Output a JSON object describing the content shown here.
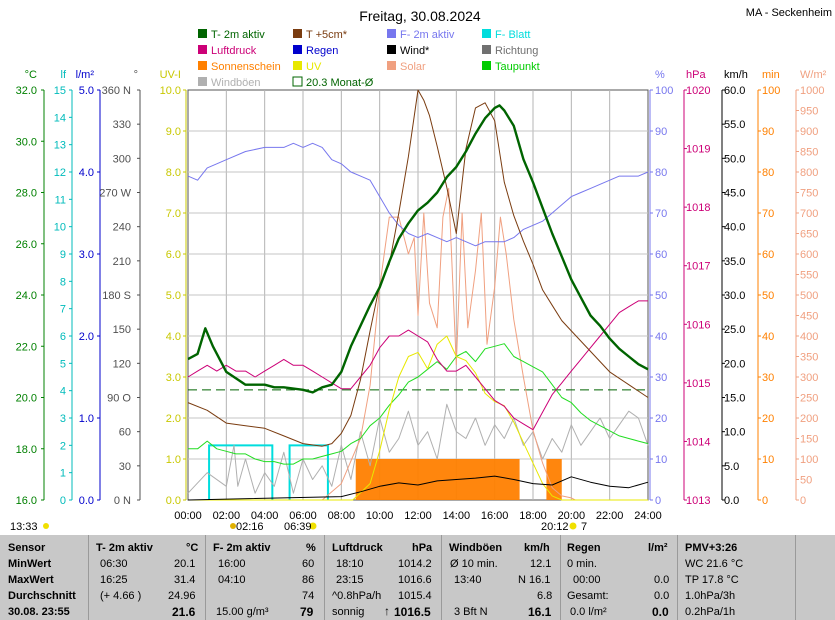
{
  "header": {
    "title": "Freitag, 30.08.2024",
    "station": "MA - Seckenheim"
  },
  "legend": [
    {
      "label": "T- 2m aktiv",
      "color": "#006400"
    },
    {
      "label": "T +5cm*",
      "color": "#7a3c10"
    },
    {
      "label": "F- 2m aktiv",
      "color": "#7777ee"
    },
    {
      "label": "F- Blatt",
      "color": "#00dddd"
    },
    {
      "label": "Luftdruck",
      "color": "#cc0077"
    },
    {
      "label": "Regen",
      "color": "#0000cc"
    },
    {
      "label": "Wind*",
      "color": "#000000"
    },
    {
      "label": "Richtung",
      "color": "#707070"
    },
    {
      "label": "Sonnenschein",
      "color": "#ff8000"
    },
    {
      "label": "UV",
      "color": "#e8e800"
    },
    {
      "label": "Solar",
      "color": "#f0a080"
    },
    {
      "label": "Taupunkt",
      "color": "#00cc00"
    },
    {
      "label": "Windböen",
      "color": "#b0b0b0"
    },
    {
      "label": "20.3 Monat-Ø",
      "color": "#006400"
    }
  ],
  "chart_data": {
    "type": "line",
    "x_label_unit": "time of day",
    "x_ticks": [
      "00:00",
      "02:00",
      "04:00",
      "06:00",
      "08:00",
      "10:00",
      "12:00",
      "14:00",
      "16:00",
      "18:00",
      "20:00",
      "22:00",
      "24:00"
    ],
    "xlim": [
      0,
      24
    ],
    "axes": {
      "temperature": {
        "unit": "°C",
        "ticks": [
          "32.0",
          "30.0",
          "28.0",
          "26.0",
          "24.0",
          "22.0",
          "20.0",
          "18.0",
          "16.0"
        ],
        "range": [
          16,
          32
        ],
        "color": "#008000"
      },
      "leaf_wetness": {
        "unit": "lf",
        "ticks": [
          "15",
          "14",
          "13",
          "12",
          "11",
          "10",
          "9",
          "8",
          "7",
          "6",
          "5",
          "4",
          "3",
          "2",
          "1",
          "0"
        ],
        "range": [
          0,
          15
        ],
        "color": "#00bbbb"
      },
      "rain": {
        "unit": "l/m²",
        "ticks": [
          "5.0",
          "4.0",
          "3.0",
          "2.0",
          "1.0",
          "0.0"
        ],
        "range": [
          0,
          5
        ],
        "color": "#0000cc"
      },
      "direction": {
        "unit": "°",
        "ticks": [
          "360 N",
          "330",
          "300",
          "270 W",
          "240",
          "210",
          "180 S",
          "150",
          "120",
          "90 O",
          "60",
          "30",
          "0 N"
        ],
        "range": [
          0,
          360
        ],
        "color": "#505050"
      },
      "uv": {
        "unit": "UV-I",
        "ticks": [
          "10.0",
          "9.0",
          "8.0",
          "7.0",
          "6.0",
          "5.0",
          "4.0",
          "3.0",
          "2.0",
          "1.0",
          "0.0"
        ],
        "range": [
          0,
          10
        ],
        "color": "#c8c800"
      },
      "humidity": {
        "unit": "%",
        "ticks": [
          "100",
          "90",
          "80",
          "70",
          "60",
          "50",
          "40",
          "30",
          "20",
          "10",
          "0"
        ],
        "range": [
          0,
          100
        ],
        "color": "#7777ee"
      },
      "pressure": {
        "unit": "hPa",
        "ticks": [
          "1020",
          "1019",
          "1018",
          "1017",
          "1016",
          "1015",
          "1014",
          "1013"
        ],
        "range": [
          1013,
          1020
        ],
        "color": "#cc0077"
      },
      "wind": {
        "unit": "km/h",
        "ticks": [
          "60.0",
          "55.0",
          "50.0",
          "45.0",
          "40.0",
          "35.0",
          "30.0",
          "25.0",
          "20.0",
          "15.0",
          "10.0",
          "5.0",
          "0.0"
        ],
        "range": [
          0,
          60
        ],
        "color": "#000000"
      },
      "sunshine": {
        "unit": "min",
        "ticks": [
          "100",
          "90",
          "80",
          "70",
          "60",
          "50",
          "40",
          "30",
          "20",
          "10",
          "0"
        ],
        "range": [
          0,
          100
        ],
        "color": "#ff8000"
      },
      "solar": {
        "unit": "W/m²",
        "ticks": [
          "1000",
          "950",
          "900",
          "850",
          "800",
          "750",
          "700",
          "650",
          "600",
          "550",
          "500",
          "450",
          "400",
          "350",
          "300",
          "250",
          "200",
          "150",
          "100",
          "50",
          "0"
        ],
        "range": [
          0,
          1000
        ],
        "color": "#f0a080"
      }
    },
    "series": [
      {
        "name": "T- 2m aktiv",
        "axis": "temperature",
        "color": "#006400",
        "width": 2.4,
        "x": [
          0,
          0.5,
          0.9,
          1.3,
          2,
          3,
          4,
          4.5,
          5,
          6,
          6.5,
          7,
          7.5,
          8,
          8.5,
          9,
          9.5,
          10,
          10.5,
          11,
          11.5,
          12,
          12.5,
          13,
          13.5,
          14,
          14.5,
          15,
          15.5,
          16,
          16.25,
          16.5,
          17,
          17.5,
          18,
          18.5,
          19,
          19.5,
          20,
          20.5,
          21,
          21.5,
          22,
          22.5,
          23,
          23.5,
          24
        ],
        "y": [
          21.5,
          21.7,
          22.7,
          22.0,
          21.0,
          20.5,
          20.5,
          20.4,
          20.4,
          20.3,
          20.2,
          20.4,
          20.5,
          21.0,
          22.0,
          22.8,
          23.6,
          24.3,
          25.3,
          26.2,
          26.8,
          27.3,
          27.6,
          28.0,
          28.6,
          29.0,
          29.6,
          30.3,
          30.9,
          31.3,
          31.4,
          31.2,
          30.6,
          29.3,
          28.4,
          27.4,
          26.4,
          25.5,
          24.6,
          23.9,
          23.2,
          22.8,
          22.3,
          21.9,
          21.6,
          21.3,
          21.1
        ]
      },
      {
        "name": "T +5cm*",
        "axis": "temperature",
        "color": "#7a3c10",
        "width": 1,
        "x": [
          0,
          1,
          2,
          3,
          4,
          5,
          6,
          7,
          7.5,
          8,
          8.5,
          9,
          9.5,
          10,
          10.5,
          11,
          11.5,
          12,
          12.3,
          12.6,
          13,
          13.5,
          14,
          14.5,
          15,
          15.5,
          16,
          16.5,
          17,
          17.5,
          18,
          18.5,
          19,
          19.5,
          20,
          21,
          22,
          23,
          24
        ],
        "y": [
          19.8,
          19.5,
          19.0,
          18.9,
          18.8,
          18.5,
          18.2,
          18.1,
          18.2,
          18.6,
          19.3,
          20.7,
          22.6,
          24.4,
          25.2,
          27.2,
          29.4,
          32.0,
          31.6,
          31.0,
          29.8,
          28.2,
          26.4,
          29.7,
          31.3,
          31.5,
          30.8,
          28.4,
          27.1,
          26.1,
          25.2,
          24.2,
          23.6,
          23.0,
          22.6,
          21.8,
          21.0,
          20.5,
          20.0
        ]
      },
      {
        "name": "F- 2m aktiv",
        "axis": "humidity",
        "color": "#7777ee",
        "width": 1,
        "x": [
          0,
          0.5,
          1,
          1.5,
          2,
          3,
          4,
          5,
          5.5,
          6,
          6.5,
          7,
          7.5,
          8,
          8.5,
          9,
          9.5,
          10,
          10.5,
          11,
          11.5,
          12,
          12.5,
          13,
          13.5,
          14,
          14.5,
          15,
          15.5,
          16,
          16.5,
          17,
          17.5,
          18,
          18.5,
          19,
          19.5,
          20,
          20.5,
          21,
          21.5,
          22,
          22.5,
          23,
          23.5,
          24
        ],
        "y": [
          79,
          78,
          81,
          82,
          83,
          85,
          86,
          86,
          87,
          86,
          87,
          86,
          83,
          82,
          80,
          79,
          78,
          74,
          70,
          67,
          65,
          64,
          65,
          64,
          63,
          64,
          63,
          62,
          63,
          63,
          63,
          64,
          66,
          67,
          68,
          70,
          72,
          74,
          75,
          76,
          77,
          78,
          79,
          79,
          79,
          80
        ]
      },
      {
        "name": "Luftdruck",
        "axis": "pressure",
        "color": "#cc0077",
        "width": 1,
        "x": [
          0,
          0.5,
          1,
          1.5,
          2,
          2.5,
          3,
          3.5,
          4,
          4.5,
          5,
          5.5,
          6,
          6.5,
          7,
          7.5,
          8,
          8.5,
          9,
          9.5,
          10,
          10.5,
          11,
          11.5,
          12,
          12.5,
          13,
          13.5,
          14,
          14.5,
          15,
          15.5,
          16,
          16.5,
          17,
          17.5,
          18,
          18.5,
          19,
          19.5,
          20,
          20.5,
          21,
          21.5,
          22,
          22.5,
          23,
          23.5,
          24
        ],
        "y": [
          1015.1,
          1015.2,
          1015.3,
          1015.2,
          1015.3,
          1015.2,
          1015.2,
          1015.1,
          1015.2,
          1015.3,
          1015.4,
          1015.3,
          1015.3,
          1015.2,
          1015.1,
          1015.0,
          1014.9,
          1014.9,
          1015.1,
          1015.3,
          1015.6,
          1015.8,
          1015.8,
          1015.9,
          1015.8,
          1015.7,
          1015.4,
          1015.2,
          1015.2,
          1015.3,
          1015.1,
          1014.9,
          1014.7,
          1014.6,
          1014.4,
          1014.3,
          1014.2,
          1014.5,
          1014.8,
          1015.0,
          1015.2,
          1015.4,
          1015.6,
          1015.8,
          1016.0,
          1016.2,
          1016.3,
          1016.4,
          1016.4
        ]
      },
      {
        "name": "Taupunkt",
        "axis": "temperature",
        "color": "#22dd22",
        "width": 1,
        "x": [
          0,
          0.5,
          1,
          1.5,
          2,
          2.5,
          3,
          3.5,
          4,
          4.5,
          5,
          5.5,
          6,
          6.5,
          7,
          7.5,
          8,
          8.5,
          9,
          9.5,
          10,
          10.5,
          11,
          11.5,
          12,
          12.5,
          13,
          13.5,
          14,
          14.5,
          15,
          15.5,
          16,
          16.5,
          17,
          17.5,
          18,
          18.5,
          19,
          19.5,
          20,
          20.5,
          21,
          21.5,
          22,
          22.5,
          23,
          23.5,
          24
        ],
        "y": [
          18.0,
          18.0,
          18.3,
          18.0,
          17.9,
          17.8,
          17.8,
          17.6,
          17.5,
          17.5,
          17.4,
          17.4,
          17.6,
          17.6,
          17.7,
          17.8,
          17.9,
          18.2,
          18.4,
          18.9,
          19.2,
          19.7,
          20.1,
          20.6,
          20.8,
          21.1,
          21.4,
          21.1,
          21.6,
          21.8,
          21.4,
          21.9,
          22.0,
          22.1,
          21.6,
          21.4,
          21.2,
          21.0,
          20.5,
          20.0,
          19.8,
          19.4,
          19.1,
          18.9,
          18.7,
          18.5,
          18.4,
          18.3,
          18.2
        ]
      },
      {
        "name": "Solar",
        "axis": "solar",
        "color": "#f0a080",
        "width": 1,
        "x": [
          0,
          7,
          8,
          9,
          9.5,
          10,
          10.5,
          11,
          11.5,
          11.8,
          12,
          12.3,
          12.6,
          13,
          13.3,
          13.6,
          14,
          14.3,
          14.6,
          15,
          15.3,
          15.6,
          16,
          16.3,
          16.6,
          17,
          17.5,
          18,
          18.5,
          19,
          19.5,
          20,
          20.2,
          20.5,
          24
        ],
        "y": [
          0,
          0,
          40,
          150,
          280,
          520,
          690,
          690,
          600,
          640,
          450,
          700,
          480,
          420,
          690,
          760,
          330,
          700,
          420,
          560,
          700,
          380,
          520,
          690,
          600,
          440,
          300,
          170,
          90,
          30,
          10,
          5,
          0,
          0,
          0
        ]
      },
      {
        "name": "UV",
        "axis": "uv",
        "color": "#e8e800",
        "width": 1,
        "x": [
          0,
          8.6,
          9.5,
          10,
          10.5,
          11,
          11.5,
          12,
          12.5,
          13,
          13.5,
          14,
          14.5,
          15,
          15.5,
          16,
          16.5,
          17,
          17.5,
          18,
          18.5,
          19,
          19.5,
          24
        ],
        "y": [
          0,
          0,
          0.4,
          1.2,
          2.2,
          3.0,
          3.5,
          3.6,
          3.2,
          3.8,
          4.0,
          3.5,
          3.4,
          3.1,
          2.6,
          2.4,
          2.3,
          1.9,
          1.4,
          0.9,
          0.4,
          0.1,
          0,
          0
        ]
      },
      {
        "name": "Windböen",
        "axis": "wind",
        "color": "#b0b0b0",
        "width": 1,
        "x": [
          0,
          1,
          2,
          2.4,
          2.6,
          3,
          3.5,
          4,
          4.5,
          5,
          5.5,
          6,
          6.5,
          7,
          7.5,
          8,
          8.5,
          9,
          9.5,
          10,
          10.5,
          11,
          11.5,
          12,
          12.5,
          13,
          13.5,
          14,
          14.5,
          15,
          15.5,
          16,
          16.5,
          17,
          17.5,
          18,
          18.5,
          19,
          19.5,
          20,
          20.5,
          21,
          21.5,
          22,
          22.5,
          23,
          23.5,
          24
        ],
        "y": [
          1,
          4,
          2,
          8,
          2,
          6,
          1,
          4,
          2,
          7,
          1,
          6,
          3,
          5,
          2,
          8,
          3,
          10,
          5,
          12,
          7,
          9,
          13,
          8,
          10,
          6,
          14,
          10,
          9,
          12,
          8,
          11,
          9,
          12,
          8,
          10,
          6,
          9,
          7,
          11,
          8,
          10,
          12,
          9,
          11,
          13,
          12,
          8
        ]
      },
      {
        "name": "Wind*",
        "axis": "wind",
        "color": "#000000",
        "width": 1,
        "x": [
          0,
          8,
          9,
          10,
          11,
          12,
          13,
          14,
          15,
          16,
          17,
          18,
          19,
          20,
          21,
          22,
          23,
          24
        ],
        "y": [
          0,
          0.5,
          1.2,
          2.0,
          2.5,
          2.2,
          2.8,
          3.0,
          3.2,
          3.5,
          3.0,
          2.4,
          2.2,
          3.4,
          2.6,
          2.0,
          1.8,
          2.6
        ]
      }
    ],
    "sunshine_blocks": [
      {
        "from": 8.75,
        "to": 17.3,
        "value": 10
      },
      {
        "from": 18.7,
        "to": 19.5,
        "value": 10
      }
    ],
    "leaf_wetness_steps": [
      {
        "from": 1.1,
        "to": 4.4,
        "value": 2
      },
      {
        "from": 5.3,
        "to": 7.3,
        "value": 2
      }
    ],
    "month_avg_temperature": 20.3,
    "sunrise_label": "06:39",
    "sunset_label": "20:12",
    "moon_label": "02:16",
    "time_left": "13:33",
    "moon_right_label": "7"
  },
  "footer": {
    "col1": {
      "h1": "Sensor",
      "r1": "MinWert",
      "r2": "MaxWert",
      "r3": "Durchschnitt",
      "r4": "30.08. 23:55"
    },
    "col2": {
      "h1": "T- 2m aktiv",
      "h2": "°C",
      "r1a": "06:30",
      "r1b": "20.1",
      "r2a": "16:25",
      "r2b": "31.4",
      "r3a": "(+ 4.66 )",
      "r3b": "24.96",
      "r4b": "21.6"
    },
    "col3": {
      "h1": "F- 2m aktiv",
      "h2": "%",
      "r1a": "16:00",
      "r1b": "60",
      "r2a": "04:10",
      "r2b": "86",
      "r3b": "74",
      "r4a": "15.00 g/m³",
      "r4b": "79"
    },
    "col4": {
      "h1": "Luftdruck",
      "h2": "hPa",
      "r1a": "18:10",
      "r1b": "1014.2",
      "r2a": "23:15",
      "r2b": "1016.6",
      "r3a": "^0.8hPa/h",
      "r3b": "1015.4",
      "r4a": "sonnig",
      "r4b": "1016.5",
      "arrow": "🠕"
    },
    "col5": {
      "h1": "Windböen",
      "h2": "km/h",
      "r1a": "Ø 10 min.",
      "r1b": "12.1",
      "r2a": "13:40",
      "r2b": "N 16.1",
      "r3b": "6.8",
      "r4a": "3 Bft N",
      "r4b": "16.1"
    },
    "col6": {
      "h1": "Regen",
      "h2": "l/m²",
      "r1a": "0 min.",
      "r2a": "00:00",
      "r2b": "0.0",
      "r3a": "Gesamt:",
      "r3b": "0.0",
      "r4a": "0.0 l/m²",
      "r4b": "0.0"
    },
    "col7": {
      "h1": "PMV+3:26",
      "r1": "WC 21.6 °C",
      "r2": "TP 17.8 °C",
      "r3": "1.0hPa/3h",
      "r4": "0.2hPa/1h"
    }
  }
}
